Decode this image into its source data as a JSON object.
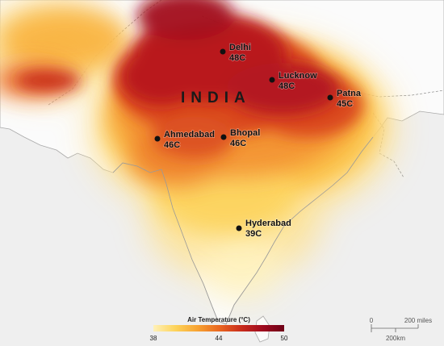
{
  "map": {
    "country_label": "INDIA",
    "cities": [
      {
        "name": "Delhi",
        "temp": "48C"
      },
      {
        "name": "Lucknow",
        "temp": "48C"
      },
      {
        "name": "Patna",
        "temp": "45C"
      },
      {
        "name": "Ahmedabad",
        "temp": "46C"
      },
      {
        "name": "Bhopal",
        "temp": "46C"
      },
      {
        "name": "Hyderabad",
        "temp": "39C"
      }
    ]
  },
  "legend": {
    "title": "Air Temperature (°C)",
    "ticks": [
      "38",
      "44",
      "50"
    ],
    "colors": [
      "#fff1b8",
      "#fdd35a",
      "#f7a232",
      "#e96520",
      "#c72a1c",
      "#9e0a1e",
      "#6e0017"
    ]
  },
  "scale_bar": {
    "zero": "0",
    "miles_label": "200 miles",
    "km_label": "200km"
  },
  "colors": {
    "land": "#fbfbfb",
    "background": "#efefef",
    "coastline": "#a9a9a9",
    "border": "#8c8c8c"
  }
}
